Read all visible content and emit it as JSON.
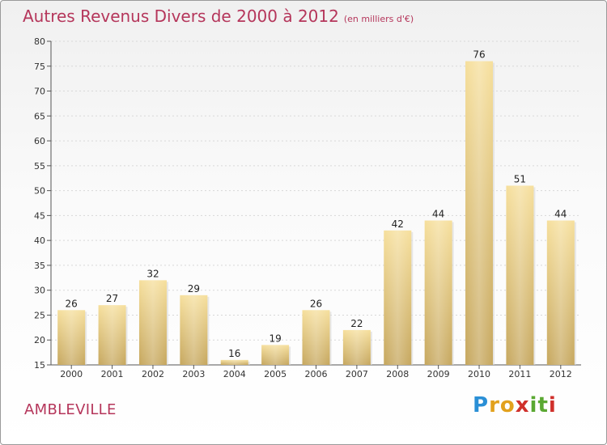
{
  "title": "Autres Revenus Divers de 2000 à 2012",
  "subtitle": "(en milliers d'€)",
  "commune": "AMBLEVILLE",
  "brand": {
    "text": "Proxiti",
    "letters": [
      "P",
      "r",
      "o",
      "x",
      "i",
      "t",
      "i"
    ],
    "colors": [
      "#2a8fd6",
      "#e2a11d",
      "#e2a11d",
      "#d0302b",
      "#5aa832",
      "#5aa832",
      "#d0302b"
    ]
  },
  "colors": {
    "bar_top": "#f6df9c",
    "bar_bottom": "#c6a75e",
    "title": "#b5365b"
  },
  "chart_data": {
    "type": "bar",
    "title": "Autres Revenus Divers de 2000 à 2012",
    "categories": [
      "2000",
      "2001",
      "2002",
      "2003",
      "2004",
      "2005",
      "2006",
      "2007",
      "2008",
      "2009",
      "2010",
      "2011",
      "2012"
    ],
    "values": [
      26,
      27,
      32,
      29,
      16,
      19,
      26,
      22,
      42,
      44,
      76,
      51,
      44
    ],
    "data_labels": [
      "26",
      "27",
      "32",
      "29",
      "16",
      "19",
      "26",
      "22",
      "42",
      "44",
      "76",
      "51",
      "44"
    ],
    "ylim": [
      15,
      80
    ],
    "yticks": [
      "15",
      "20",
      "25",
      "30",
      "35",
      "40",
      "45",
      "50",
      "55",
      "60",
      "65",
      "70",
      "75",
      "80"
    ],
    "grid": true,
    "xlabel": "",
    "ylabel": ""
  }
}
